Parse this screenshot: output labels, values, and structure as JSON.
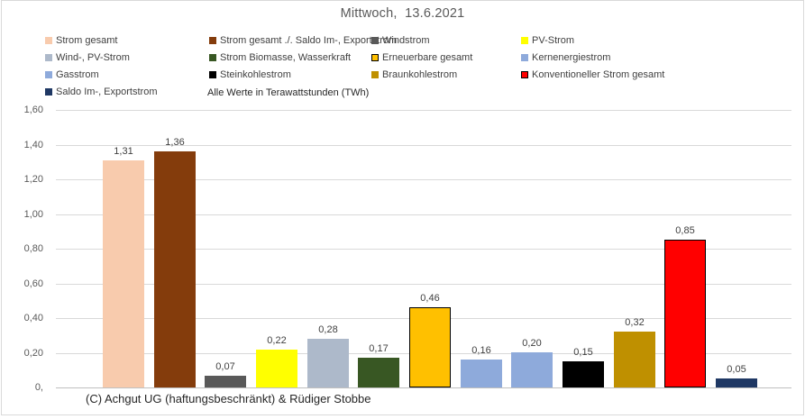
{
  "title": "Mittwoch,  13.6.2021",
  "footer": "(C) Achgut UG (haftungsbeschränkt) & Rüdiger Stobbe",
  "colors": {
    "grid": "#d9d9d9",
    "axis": "#bfbfbf",
    "title_text": "#595959",
    "legend_text": "#404040",
    "tick_text": "#595959",
    "label_text": "#404040"
  },
  "chart_data": {
    "type": "bar",
    "title": "Mittwoch,  13.6.2021",
    "unit_note": "Alle Werte in Terawattstunden (TWh)",
    "xlabel": "",
    "ylabel": "",
    "ylim": [
      0,
      1.6
    ],
    "ytick_labels": [
      "1,60",
      "1,40",
      "1,20",
      "1,00",
      "0,80",
      "0,60",
      "0,40",
      "0,20",
      "0,"
    ],
    "grid": true,
    "legend_position": "top",
    "legend_columns": 4,
    "series": [
      {
        "name": "Strom gesamt",
        "value": 1.31,
        "label": "1,31",
        "color": "#F8CBAD",
        "border": false
      },
      {
        "name": "Strom gesamt ./. Saldo Im-, Exportstrom",
        "value": 1.36,
        "label": "1,36",
        "color": "#843C0C",
        "border": false
      },
      {
        "name": "Windstrom",
        "value": 0.07,
        "label": "0,07",
        "color": "#595959",
        "border": false
      },
      {
        "name": "PV-Strom",
        "value": 0.22,
        "label": "0,22",
        "color": "#FFFF00",
        "border": false
      },
      {
        "name": "Wind-, PV-Strom",
        "value": 0.28,
        "label": "0,28",
        "color": "#ADB9CA",
        "border": false
      },
      {
        "name": "Strom Biomasse, Wasserkraft",
        "value": 0.17,
        "label": "0,17",
        "color": "#385723",
        "border": false
      },
      {
        "name": "Erneuerbare gesamt",
        "value": 0.46,
        "label": "0,46",
        "color": "#FFC000",
        "border": true
      },
      {
        "name": "Kernenergiestrom",
        "value": 0.16,
        "label": "0,16",
        "color": "#8EAADB",
        "border": false
      },
      {
        "name": "Gasstrom",
        "value": 0.2,
        "label": "0,20",
        "color": "#8EAADB",
        "border": false
      },
      {
        "name": "Steinkohlestrom",
        "value": 0.15,
        "label": "0,15",
        "color": "#000000",
        "border": false
      },
      {
        "name": "Braunkohlestrom",
        "value": 0.32,
        "label": "0,32",
        "color": "#BF9000",
        "border": false
      },
      {
        "name": "Konventioneller Strom gesamt",
        "value": 0.85,
        "label": "0,85",
        "color": "#FF0000",
        "border": true
      },
      {
        "name": "Saldo Im-, Exportstrom",
        "value": 0.05,
        "label": "0,05",
        "color": "#1F3864",
        "border": false
      }
    ]
  }
}
